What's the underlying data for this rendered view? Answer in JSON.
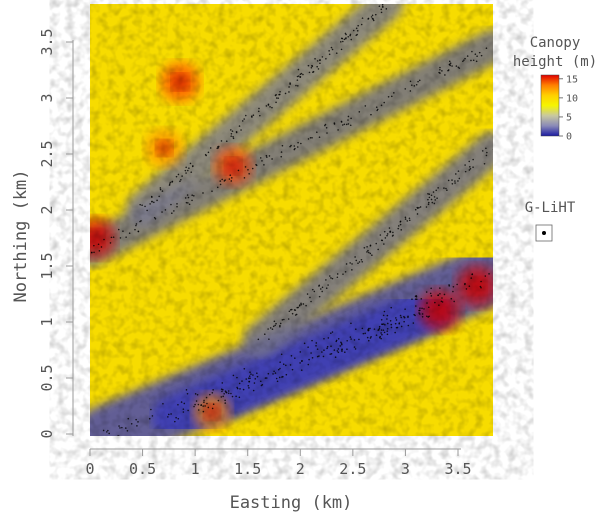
{
  "chart_data": {
    "type": "heatmap",
    "title": "",
    "xlabel": "Easting (km)",
    "ylabel": "Northing (km)",
    "xlim": [
      0,
      3.8
    ],
    "ylim": [
      0,
      3.6
    ],
    "x_ticks": [
      "0",
      "0.5",
      "1",
      "1.5",
      "2",
      "2.5",
      "3",
      "3.5"
    ],
    "x_tick_values": [
      0,
      0.5,
      1,
      1.5,
      2,
      2.5,
      3,
      3.5
    ],
    "y_ticks": [
      "0",
      "0.5",
      "1",
      "1.5",
      "2",
      "2.5",
      "3",
      "3.5"
    ],
    "y_tick_values": [
      0,
      0.5,
      1,
      1.5,
      2,
      2.5,
      3,
      3.5
    ],
    "colorbar": {
      "title_lines": [
        "Canopy",
        "height (m)"
      ],
      "ticks": [
        "15",
        "10",
        "5",
        "0"
      ],
      "tick_values": [
        15,
        10,
        5,
        0
      ],
      "range": [
        0,
        16
      ],
      "colors": [
        "#1a1aa0",
        "#8a8ab8",
        "#c8c8a0",
        "#f5f500",
        "#ffd000",
        "#ff8000",
        "#e00000"
      ]
    },
    "legend": {
      "placement": "right",
      "series": [
        {
          "name": "G-LiHT",
          "marker": "point"
        }
      ]
    },
    "background_color": "#f7dc00",
    "bands": [
      {
        "label": "",
        "x1": 0.0,
        "y1": 1.55,
        "x2": 3.8,
        "y2": 3.25,
        "color": "#6e6e8a"
      },
      {
        "label": "",
        "x1": 0.5,
        "y1": 1.9,
        "x2": 2.8,
        "y2": 3.6,
        "color": "#7a7a90"
      },
      {
        "label": "",
        "x1": 0.15,
        "y1": 0.0,
        "x2": 3.8,
        "y2": 1.35,
        "color": "#4a4ab0"
      },
      {
        "label": "",
        "x1": 0.8,
        "y1": 0.15,
        "x2": 3.2,
        "y2": 1.05,
        "color": "#3a3ab8"
      },
      {
        "label": "",
        "x1": 1.6,
        "y1": 0.8,
        "x2": 3.8,
        "y2": 2.4,
        "color": "#707090"
      }
    ],
    "hotspots": [
      {
        "x": 0.85,
        "y": 2.95,
        "v": 13
      },
      {
        "x": 0.05,
        "y": 1.65,
        "v": 14
      },
      {
        "x": 3.3,
        "y": 1.05,
        "v": 15
      },
      {
        "x": 3.65,
        "y": 1.25,
        "v": 15
      },
      {
        "x": 1.35,
        "y": 2.25,
        "v": 12
      },
      {
        "x": 1.15,
        "y": 0.2,
        "v": 11
      },
      {
        "x": 0.7,
        "y": 2.4,
        "v": 11
      }
    ]
  }
}
